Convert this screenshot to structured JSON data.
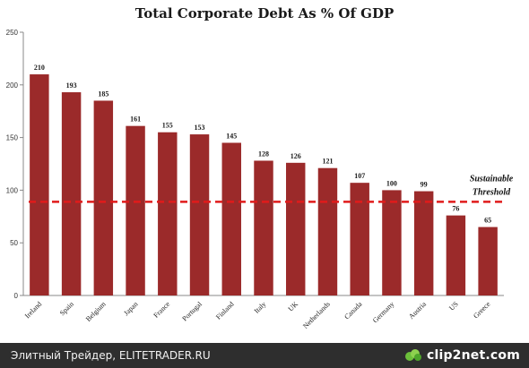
{
  "chart_data": {
    "type": "bar",
    "title": "Total Corporate Debt As % Of GDP",
    "categories": [
      "Ireland",
      "Spain",
      "Belgium",
      "Japan",
      "France",
      "Portugal",
      "Finland",
      "Italy",
      "UK",
      "Netherlands",
      "Canada",
      "Germany",
      "Austria",
      "US",
      "Greece"
    ],
    "values": [
      210,
      193,
      185,
      161,
      155,
      153,
      145,
      128,
      126,
      121,
      107,
      100,
      99,
      76,
      65
    ],
    "ylim": [
      0,
      250
    ],
    "yticks": [
      0,
      50,
      100,
      150,
      200,
      250
    ],
    "grid": false,
    "bar_color": "#9b2a2a",
    "threshold": {
      "value": 89,
      "label_line1": "Sustainable",
      "label_line2": "Threshold",
      "color": "#e01b1b"
    }
  },
  "footer": {
    "text": "Элитный Трейдер, ELITETRADER.RU",
    "brand": "clip2net.com",
    "brand_icon": "clip2net-logo-icon"
  }
}
